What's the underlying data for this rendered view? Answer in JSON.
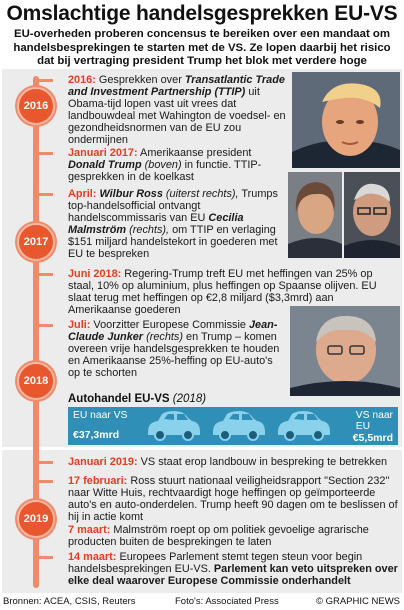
{
  "title": "Omslachtige handelsgesprekken EU-VS",
  "intro": "EU-overheden proberen concensus te bereiken over een mandaat om handelsbesprekingen te starten met de VS. Ze lopen daarbij het risico dat bij vertraging president Trump het blok met verdere hoge autotarieven zal treffen",
  "years": [
    "2016",
    "2017",
    "2018",
    "2019"
  ],
  "events": {
    "e2016": {
      "date": "2016:",
      "pre": " Gesprekken over ",
      "bold": "Transatlantic Trade and Investment Partnership (TTIP)",
      "post": " uit Obama-tijd lopen vast uit vrees dat landbouwdeal met Wahington de voedsel- en gezondheidsnormen van de EU zou ondermijnen"
    },
    "e2017a": {
      "date": "Januari 2017:",
      "pre": " Amerikaanse president ",
      "bold": "Donald Trump",
      "ital": " (boven)",
      "post": " in functie. TTIP-gesprekken in de koelkast"
    },
    "e2017b": {
      "date": "April:",
      "bold1": " Wilbur Ross",
      "ital1": " (uiterst rechts),",
      "pre": " Trumps top-handelsofficial ontvangt handelscommissaris van EU ",
      "bold2": "Cecilia Malmström",
      "ital2": " (rechts),",
      "post": " om TTIP en verlaging $151 miljard handelstekort in goederen met EU te bespreken"
    },
    "e2018a": {
      "date": "Juni 2018:",
      "post": " Regering-Trump treft EU met heffingen van 25% op staal, 10% op aluminium, plus heffingen op Spaanse olijven. EU slaat terug met heffingen op €2,8 miljard ($3,3mrd) aan Amerikaanse goederen"
    },
    "e2018b": {
      "date": "Juli:",
      "pre": " Voorzitter Europese Commissie ",
      "bold": "Jean-Claude Junker",
      "ital": " (rechts)",
      "post": " en Trump – komen overeen vrije handelsgesprekken te houden en Amerikaanse 25%-heffing op EU-auto's op te schorten"
    },
    "e2019a": {
      "date": "Januari 2019:",
      "post": " VS staat erop landbouw in bespreking te betrekken"
    },
    "e2019b": {
      "date": "17 februari:",
      "post": " Ross stuurt nationaal veiligheidsrapport \"Section 232\" naar Witte Huis, rechtvaardigt hoge heffingen op geïmporteerde auto's en auto-onderdelen. Trump heeft 90 dagen om te beslissen of hij in actie komt"
    },
    "e2019c": {
      "date": "7 maart:",
      "post": " Malmström roept op om politiek gevoelige agrarische producten buiten de besprekingen te laten"
    },
    "e2019d": {
      "date": "14 maart:",
      "pre": " Europees Parlement stemt tegen steun voor begin handelsbesprekingen EU-VS. ",
      "bold": "Parlement kan veto uitspreken over elke deal waarover Europese Commissie onderhandelt"
    }
  },
  "trade": {
    "title": "Autohandel EU-VS",
    "year": "(2018)",
    "left_label": "EU naar VS",
    "left_value": "€37,3mrd",
    "right_label_1": "VS naar",
    "right_label_2": "EU",
    "right_value": "€5,5mrd",
    "colors": {
      "box": "#2f8fb6",
      "car": "#8ad1ec"
    }
  },
  "footer": {
    "sources": "Bronnen: ACEA, CSIS, Reuters",
    "photos": "Foto's: Associated Press",
    "credit": "© GRAPHIC NEWS"
  },
  "accent": "#e53d22"
}
